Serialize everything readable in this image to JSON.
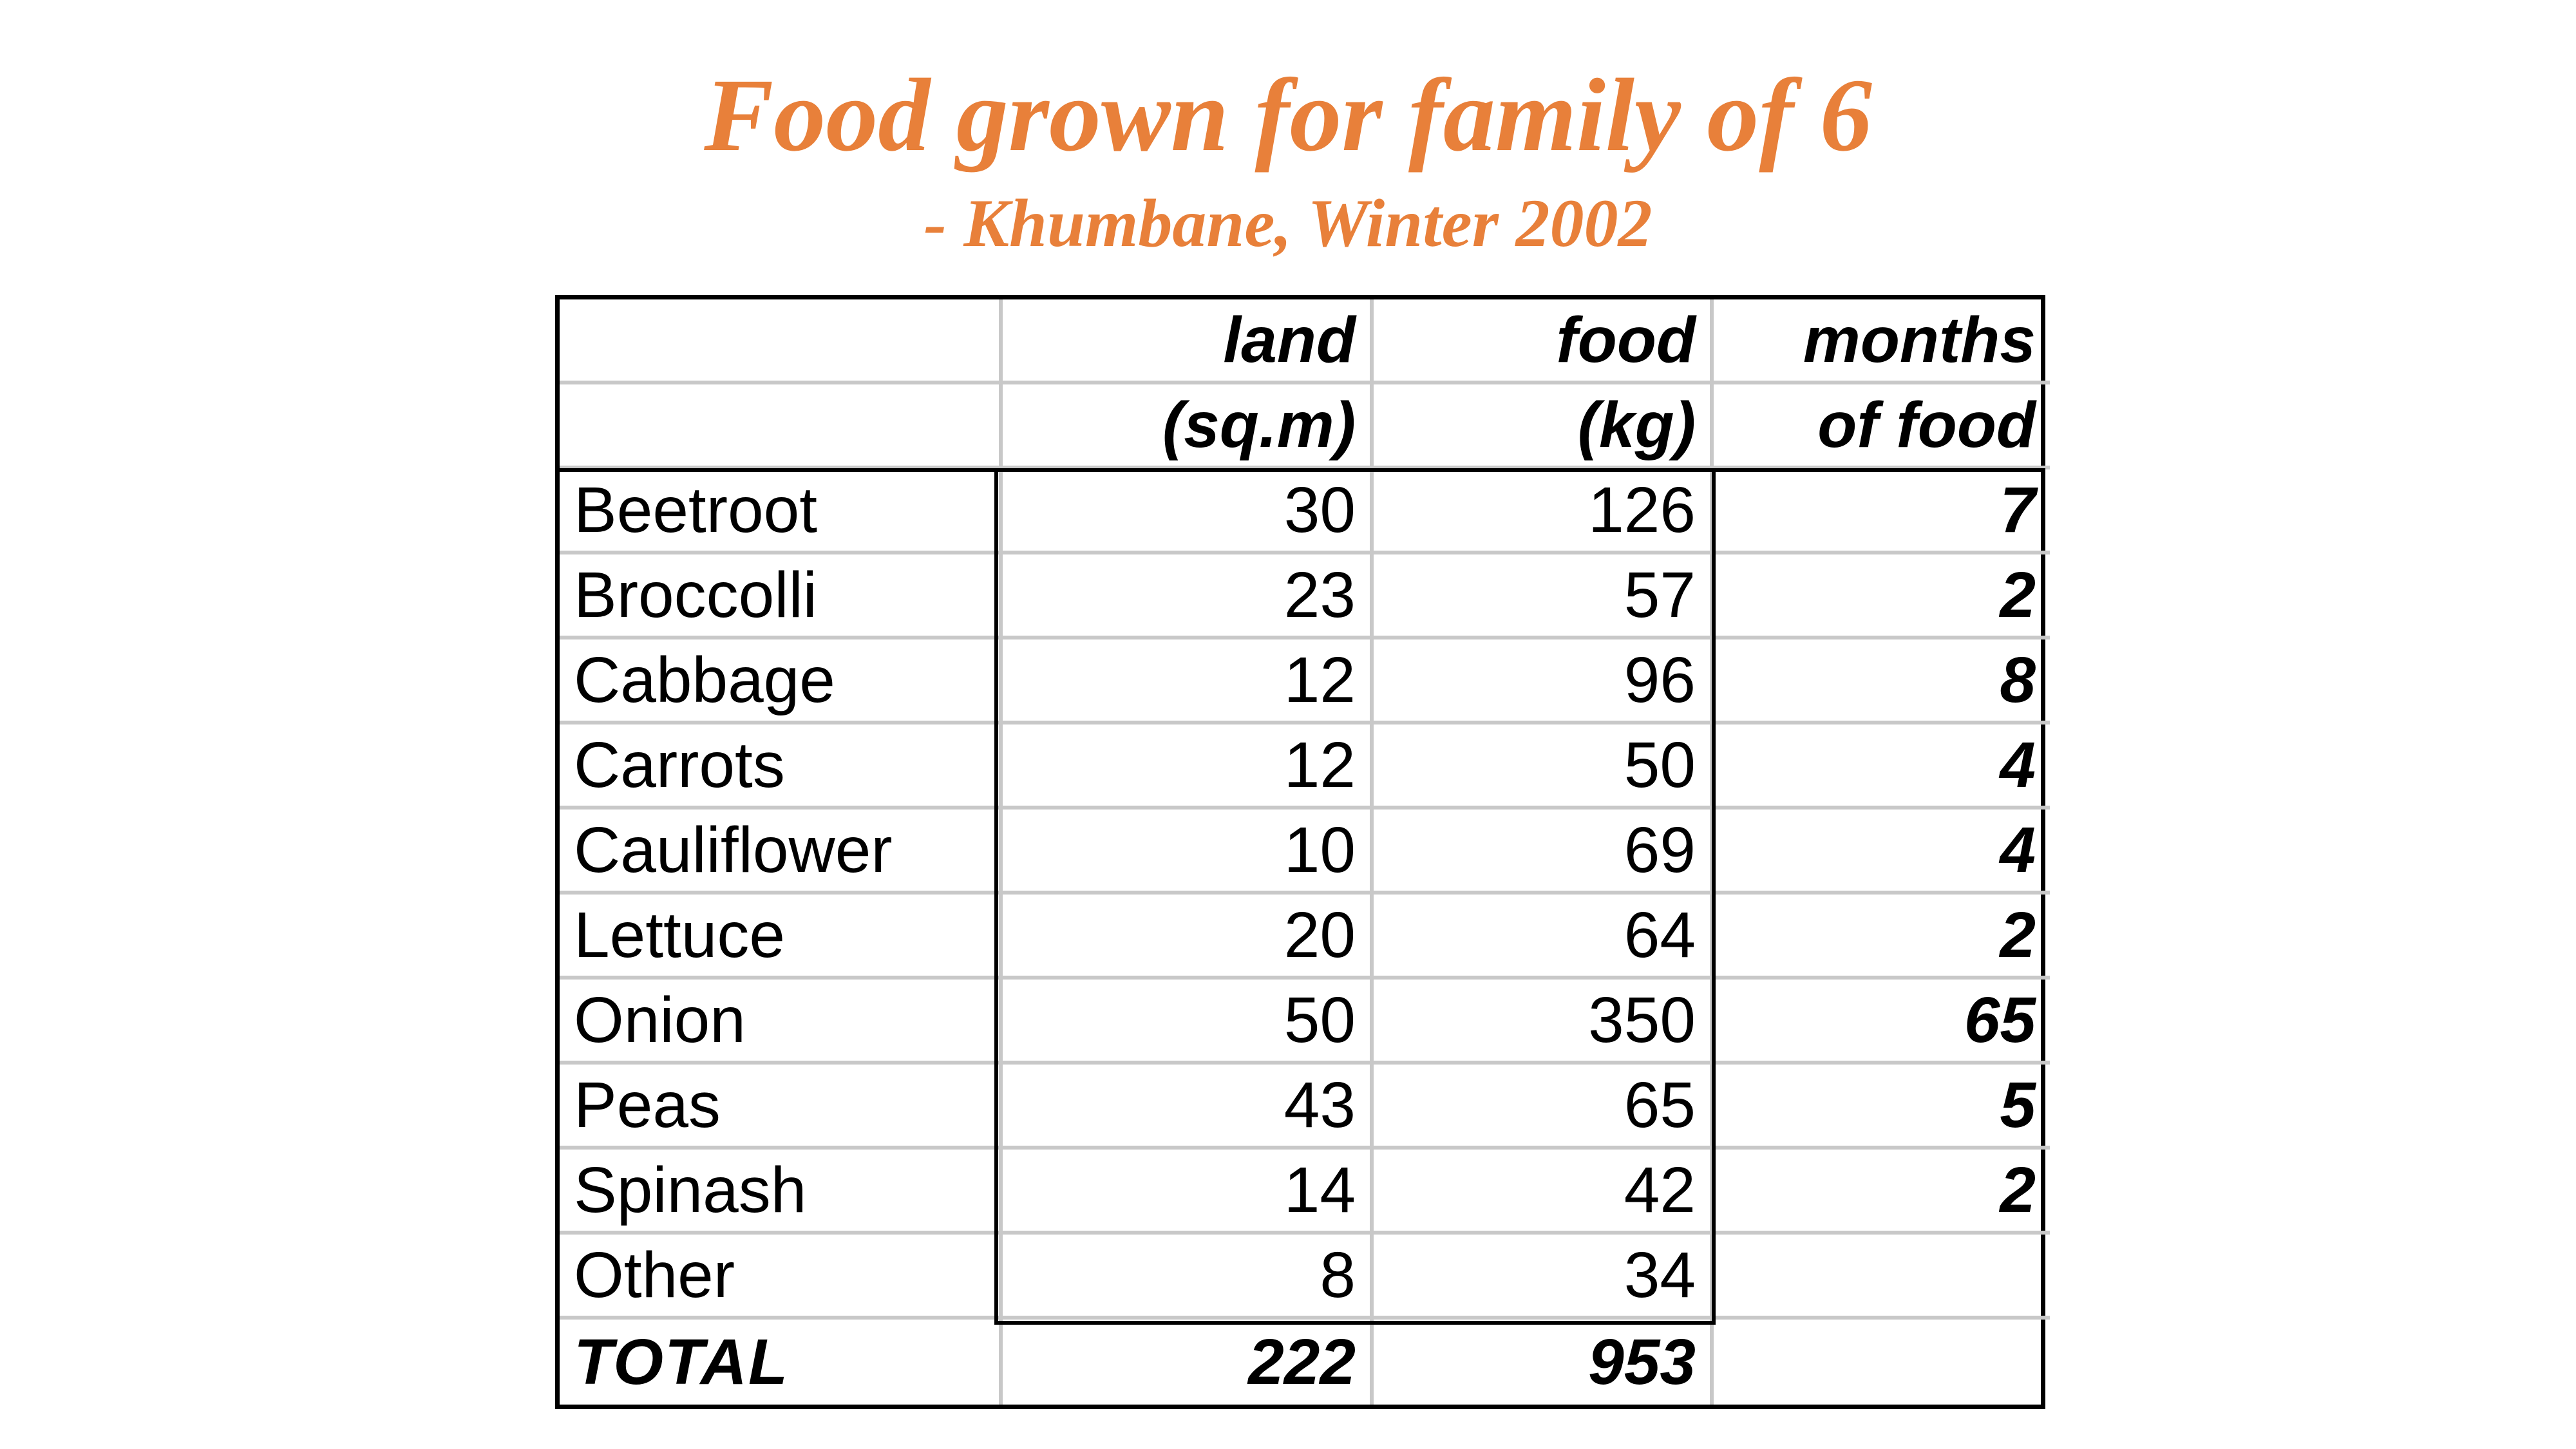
{
  "title": "Food grown for family of 6",
  "subtitle": "- Khumbane, Winter 2002",
  "table": {
    "headers": [
      {
        "line1": "",
        "line2": ""
      },
      {
        "line1": "land",
        "line2": "(sq.m)"
      },
      {
        "line1": "food",
        "line2": "(kg)"
      },
      {
        "line1": "months",
        "line2": "of food"
      }
    ],
    "rows": [
      {
        "name": "Beetroot",
        "land": "30",
        "food": "126",
        "months": "7"
      },
      {
        "name": "Broccolli",
        "land": "23",
        "food": "57",
        "months": "2"
      },
      {
        "name": "Cabbage",
        "land": "12",
        "food": "96",
        "months": "8"
      },
      {
        "name": "Carrots",
        "land": "12",
        "food": "50",
        "months": "4"
      },
      {
        "name": "Cauliflower",
        "land": "10",
        "food": "69",
        "months": "4"
      },
      {
        "name": "Lettuce",
        "land": "20",
        "food": "64",
        "months": "2"
      },
      {
        "name": "Onion",
        "land": "50",
        "food": "350",
        "months": "65"
      },
      {
        "name": "Peas",
        "land": "43",
        "food": "65",
        "months": "5"
      },
      {
        "name": "Spinash",
        "land": "14",
        "food": "42",
        "months": "2"
      },
      {
        "name": "Other",
        "land": "8",
        "food": "34",
        "months": ""
      }
    ],
    "total": {
      "name": "TOTAL",
      "land": "222",
      "food": "953",
      "months": ""
    }
  },
  "colors": {
    "title": "#E8803A",
    "grid_line": "#c8c8c8",
    "border": "#000000"
  }
}
